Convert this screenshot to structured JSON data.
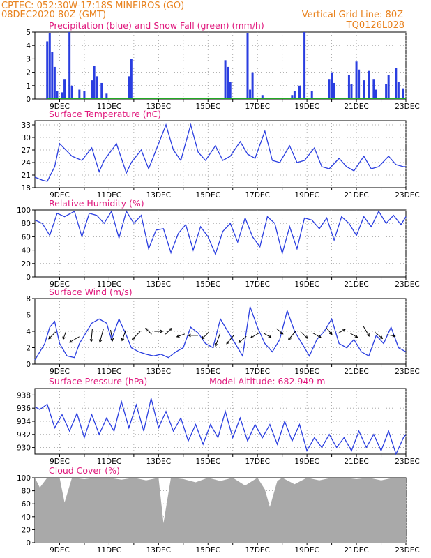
{
  "header": {
    "line1": "CPTEC:   052:30W-17:18S   MINEIROS (GO)",
    "line2": "08DEC2020 80Z (GMT)",
    "grid_note": "Vertical Grid Line: 80Z",
    "code": "TQ0126L028"
  },
  "colors": {
    "header": "#e8821e",
    "title": "#e0197d",
    "line": "#2a3ee0",
    "bar": "#2a3ee0",
    "snow": "#22aa22",
    "cloud": "#a9a9a9",
    "arrow": "#000000"
  },
  "x_ticks": [
    "9DEC",
    "11DEC",
    "13DEC",
    "15DEC",
    "17DEC",
    "19DEC",
    "21DEC",
    "23DEC"
  ],
  "chart_data": [
    {
      "type": "bar",
      "title": "Precipitation (blue) and Snow Fall (green) (mm/h)",
      "yticks": [
        "0",
        "1",
        "2",
        "3",
        "4",
        "5"
      ],
      "ylim": [
        0,
        5
      ],
      "xlim_days": [
        8.0,
        23.0
      ],
      "x_unit": "day of December 2020",
      "grid": "dotted",
      "series": [
        {
          "name": "Precipitation",
          "x": [
            8.5,
            8.6,
            8.7,
            8.8,
            8.9,
            9.1,
            9.2,
            9.4,
            9.5,
            9.8,
            10.0,
            10.3,
            10.4,
            10.5,
            10.7,
            10.9,
            11.8,
            11.9,
            15.7,
            15.8,
            15.9,
            16.6,
            16.7,
            16.8,
            17.2,
            18.4,
            18.5,
            18.7,
            18.9,
            19.2,
            19.9,
            20.0,
            20.1,
            20.7,
            20.8,
            21.0,
            21.1,
            21.3,
            21.5,
            21.7,
            21.8,
            22.2,
            22.3,
            22.6,
            22.7,
            22.9
          ],
          "values": [
            4.3,
            4.9,
            3.5,
            2.4,
            0.6,
            0.5,
            1.5,
            5.0,
            1.0,
            0.7,
            0.6,
            1.4,
            2.5,
            1.7,
            1.2,
            0.4,
            1.7,
            3.0,
            2.9,
            2.4,
            1.3,
            4.9,
            0.7,
            2.0,
            0.3,
            0.3,
            0.6,
            1.0,
            5.0,
            0.6,
            1.5,
            2.0,
            1.2,
            1.8,
            1.1,
            2.8,
            2.2,
            1.4,
            2.1,
            1.5,
            0.7,
            1.1,
            1.8,
            2.3,
            1.3,
            0.8
          ]
        },
        {
          "name": "Snow Fall",
          "x": [
            8.5,
            23.0
          ],
          "values": [
            0,
            0
          ]
        }
      ]
    },
    {
      "type": "line",
      "title": "Surface Temperature (nC)",
      "yticks": [
        "18",
        "21",
        "24",
        "27",
        "30",
        "33"
      ],
      "ylim": [
        18,
        34
      ],
      "xlim_days": [
        8.0,
        23.0
      ],
      "x_unit": "day of December 2020",
      "grid": "dotted",
      "series": [
        {
          "name": "Surface Temperature",
          "x": [
            8.0,
            8.3,
            8.5,
            8.8,
            9.0,
            9.5,
            9.9,
            10.3,
            10.6,
            10.8,
            11.3,
            11.7,
            11.9,
            12.3,
            12.6,
            12.9,
            13.3,
            13.6,
            13.9,
            14.3,
            14.6,
            14.9,
            15.3,
            15.6,
            15.9,
            16.3,
            16.6,
            16.9,
            17.3,
            17.6,
            17.9,
            18.3,
            18.6,
            18.9,
            19.3,
            19.6,
            19.9,
            20.3,
            20.6,
            20.9,
            21.3,
            21.6,
            21.9,
            22.3,
            22.6,
            22.9,
            23.0
          ],
          "values": [
            20.5,
            19.8,
            19.5,
            23.0,
            28.5,
            25.5,
            24.5,
            27.5,
            21.8,
            24.5,
            28.5,
            21.5,
            24.0,
            27.0,
            22.5,
            27.0,
            33.0,
            27.0,
            24.5,
            33.0,
            26.5,
            24.5,
            28.0,
            24.5,
            25.5,
            29.0,
            26.0,
            25.0,
            31.5,
            24.5,
            24.0,
            28.0,
            24.0,
            24.5,
            27.5,
            23.0,
            22.5,
            25.0,
            23.0,
            22.0,
            25.5,
            22.5,
            23.0,
            25.5,
            23.5,
            23.0,
            23.0
          ]
        }
      ]
    },
    {
      "type": "line",
      "title": "Relative Humidity (%)",
      "yticks": [
        "0",
        "20",
        "40",
        "60",
        "80",
        "100"
      ],
      "ylim": [
        0,
        100
      ],
      "xlim_days": [
        8.0,
        23.0
      ],
      "x_unit": "day of December 2020",
      "grid": "dotted",
      "series": [
        {
          "name": "Relative Humidity",
          "x": [
            8.0,
            8.3,
            8.6,
            8.9,
            9.2,
            9.6,
            9.9,
            10.2,
            10.5,
            10.8,
            11.1,
            11.4,
            11.7,
            12.0,
            12.3,
            12.6,
            12.9,
            13.2,
            13.5,
            13.8,
            14.1,
            14.4,
            14.7,
            15.0,
            15.3,
            15.6,
            15.9,
            16.2,
            16.5,
            16.8,
            17.1,
            17.4,
            17.7,
            18.0,
            18.3,
            18.6,
            18.9,
            19.2,
            19.5,
            19.8,
            20.1,
            20.4,
            20.7,
            21.0,
            21.3,
            21.6,
            21.9,
            22.2,
            22.5,
            22.8,
            23.0
          ],
          "values": [
            85,
            80,
            62,
            95,
            90,
            98,
            60,
            95,
            92,
            80,
            98,
            58,
            98,
            80,
            92,
            42,
            70,
            72,
            36,
            65,
            78,
            40,
            75,
            60,
            34,
            68,
            80,
            52,
            88,
            60,
            45,
            90,
            80,
            35,
            75,
            42,
            88,
            85,
            72,
            88,
            55,
            90,
            80,
            62,
            90,
            75,
            98,
            80,
            92,
            78,
            90
          ]
        }
      ]
    },
    {
      "type": "line",
      "title": "Surface Wind (m/s)",
      "yticks": [
        "0",
        "2",
        "4",
        "6",
        "8"
      ],
      "ylim": [
        0,
        8
      ],
      "xlim_days": [
        8.0,
        23.0
      ],
      "x_unit": "day of December 2020",
      "grid": "dotted",
      "series": [
        {
          "name": "Surface Wind",
          "x": [
            8.0,
            8.2,
            8.4,
            8.6,
            8.8,
            9.0,
            9.3,
            9.6,
            9.8,
            10.0,
            10.3,
            10.6,
            10.9,
            11.1,
            11.4,
            11.7,
            11.9,
            12.2,
            12.5,
            12.8,
            13.1,
            13.4,
            13.7,
            14.0,
            14.3,
            14.6,
            14.9,
            15.2,
            15.5,
            15.8,
            16.1,
            16.4,
            16.7,
            17.0,
            17.3,
            17.6,
            17.9,
            18.2,
            18.5,
            18.8,
            19.1,
            19.4,
            19.7,
            20.0,
            20.3,
            20.6,
            20.9,
            21.2,
            21.5,
            21.8,
            22.1,
            22.4,
            22.7,
            23.0
          ],
          "values": [
            0.5,
            1.5,
            2.5,
            4.5,
            5.2,
            2.5,
            1.0,
            0.8,
            2.5,
            3.5,
            5.0,
            5.5,
            5.0,
            3.0,
            5.5,
            3.5,
            2.0,
            1.5,
            1.2,
            1.0,
            1.2,
            0.8,
            1.5,
            2.0,
            4.5,
            3.8,
            2.5,
            2.0,
            5.5,
            4.0,
            2.5,
            1.0,
            7.0,
            4.5,
            2.5,
            1.5,
            3.0,
            6.5,
            4.0,
            2.5,
            1.0,
            3.0,
            4.0,
            5.5,
            2.5,
            2.0,
            3.0,
            1.5,
            1.0,
            3.5,
            2.5,
            4.5,
            2.0,
            1.5
          ]
        }
      ],
      "wind_arrows": {
        "x": [
          8.7,
          9.2,
          9.6,
          10.3,
          10.7,
          11.1,
          11.6,
          12.1,
          12.6,
          13.0,
          13.4,
          13.9,
          14.4,
          14.9,
          15.4,
          15.9,
          16.4,
          16.9,
          17.4,
          17.9,
          18.4,
          18.9,
          19.4,
          19.9,
          20.4,
          20.9,
          21.4,
          21.9,
          22.4
        ],
        "y": [
          3.5,
          3.5,
          3.0,
          3.5,
          3.5,
          3.5,
          3.5,
          3.5,
          4.0,
          4.0,
          4.0,
          3.5,
          3.5,
          3.5,
          3.0,
          3.0,
          3.0,
          3.5,
          3.5,
          4.0,
          3.5,
          3.5,
          3.5,
          4.0,
          4.0,
          3.5,
          4.0,
          3.5,
          3.5
        ],
        "speed": [
          2.0,
          1.5,
          2.5,
          3.0,
          3.5,
          2.5,
          2.5,
          2.5,
          1.5,
          1.5,
          1.5,
          1.5,
          2.0,
          2.0,
          3.5,
          2.5,
          2.0,
          2.0,
          1.5,
          1.5,
          2.5,
          1.5,
          2.0,
          1.5,
          1.5,
          1.5,
          2.5,
          2.0,
          1.5
        ],
        "dir_deg": [
          225,
          200,
          240,
          185,
          195,
          170,
          200,
          225,
          315,
          90,
          45,
          250,
          270,
          225,
          200,
          220,
          230,
          240,
          120,
          130,
          220,
          135,
          120,
          140,
          60,
          120,
          150,
          130,
          100
        ]
      }
    },
    {
      "type": "line",
      "title": "Surface Pressure (hPa)",
      "subtitle": "Model Altitude: 682.949 m",
      "yticks": [
        "930",
        "932",
        "934",
        "936",
        "938"
      ],
      "ylim": [
        929,
        939
      ],
      "xlim_days": [
        8.0,
        23.0
      ],
      "x_unit": "day of December 2020",
      "grid": "dotted",
      "series": [
        {
          "name": "Surface Pressure",
          "x": [
            8.0,
            8.2,
            8.5,
            8.8,
            9.1,
            9.4,
            9.7,
            10.0,
            10.3,
            10.6,
            10.9,
            11.2,
            11.5,
            11.8,
            12.1,
            12.4,
            12.7,
            13.0,
            13.3,
            13.6,
            13.9,
            14.2,
            14.5,
            14.8,
            15.1,
            15.4,
            15.7,
            16.0,
            16.3,
            16.6,
            16.9,
            17.2,
            17.5,
            17.8,
            18.1,
            18.4,
            18.7,
            19.0,
            19.3,
            19.6,
            19.9,
            20.2,
            20.5,
            20.8,
            21.1,
            21.4,
            21.7,
            22.0,
            22.3,
            22.6,
            22.9,
            23.0
          ],
          "values": [
            936.2,
            935.8,
            936.6,
            933.0,
            935.0,
            932.5,
            935.2,
            931.5,
            935.0,
            932.0,
            934.5,
            932.5,
            937.0,
            933.0,
            936.5,
            932.5,
            937.5,
            933.0,
            935.5,
            932.5,
            934.5,
            931.0,
            933.5,
            930.5,
            933.5,
            931.5,
            935.5,
            931.5,
            934.5,
            931.0,
            933.5,
            931.5,
            933.5,
            930.5,
            934.0,
            931.0,
            933.5,
            929.5,
            931.5,
            930.0,
            932.0,
            930.0,
            931.5,
            929.5,
            932.5,
            930.0,
            932.0,
            929.5,
            932.5,
            929.0,
            931.5,
            932.0
          ]
        }
      ]
    },
    {
      "type": "area",
      "title": "Cloud Cover (%)",
      "yticks": [
        "0",
        "20",
        "40",
        "60",
        "80",
        "100"
      ],
      "ylim": [
        0,
        100
      ],
      "xlim_days": [
        8.0,
        23.0
      ],
      "x_unit": "day of December 2020",
      "grid": "dotted",
      "series": [
        {
          "name": "Cloud Cover",
          "x": [
            8.0,
            8.2,
            8.5,
            9.0,
            9.2,
            9.5,
            10.0,
            10.5,
            11.0,
            11.5,
            12.0,
            12.5,
            13.0,
            13.2,
            13.5,
            14.0,
            14.5,
            15.0,
            15.5,
            16.0,
            16.5,
            17.0,
            17.3,
            17.5,
            17.8,
            18.0,
            18.5,
            19.0,
            19.5,
            20.0,
            20.5,
            21.0,
            21.5,
            22.0,
            22.5,
            23.0
          ],
          "values": [
            100,
            85,
            100,
            100,
            62,
            100,
            98,
            100,
            100,
            97,
            100,
            96,
            100,
            30,
            100,
            98,
            93,
            100,
            95,
            100,
            88,
            100,
            82,
            55,
            95,
            100,
            90,
            100,
            96,
            100,
            100,
            98,
            100,
            96,
            100,
            100
          ]
        }
      ]
    }
  ]
}
